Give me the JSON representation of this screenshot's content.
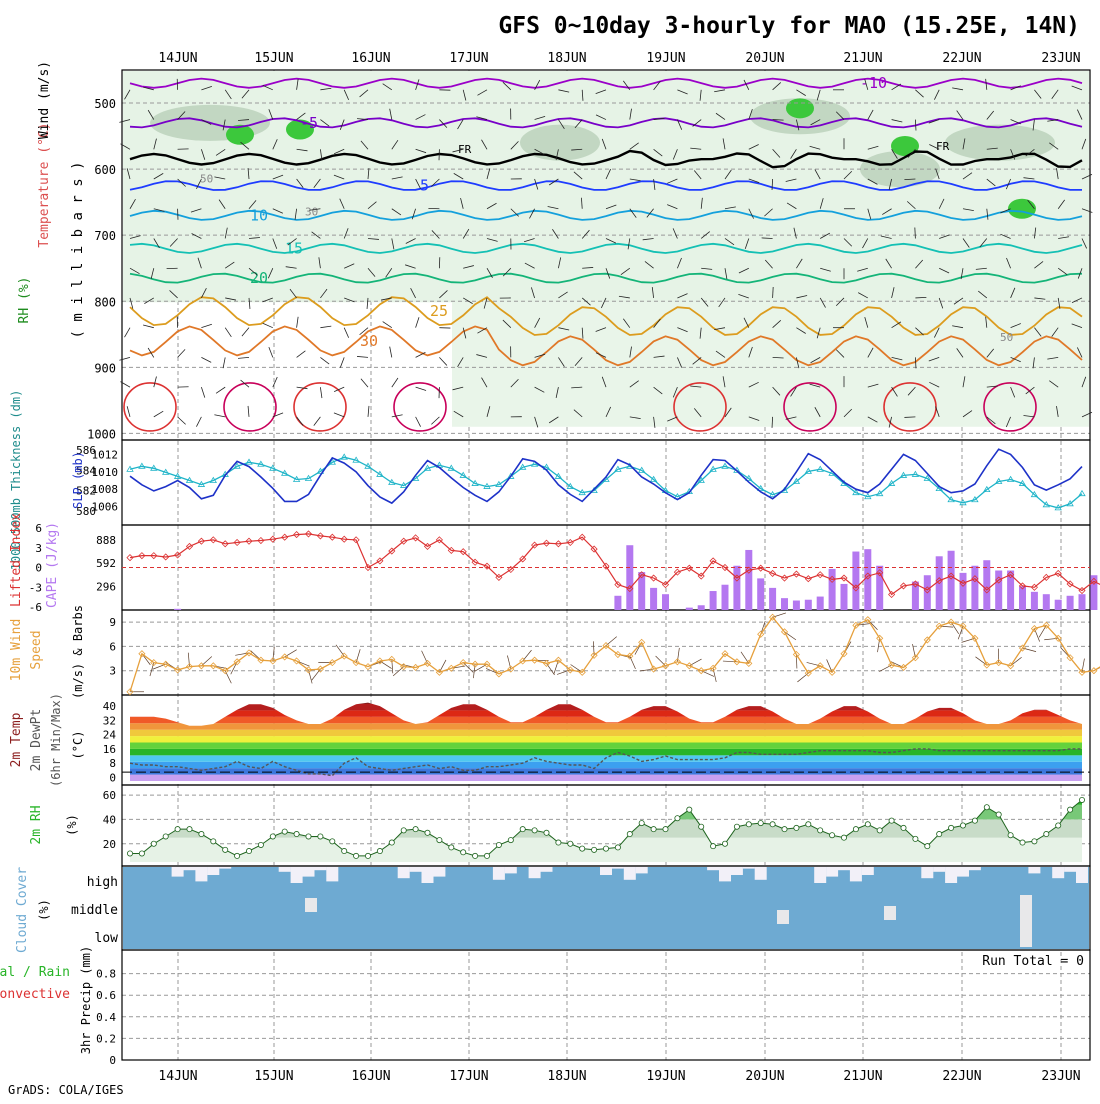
{
  "title": "GFS 0~10day 3-hourly for MAO (15.25E, 14N)",
  "credit": "GrADS: COLA/IGES",
  "dates": [
    "14JUN",
    "15JUN",
    "16JUN",
    "17JUN",
    "18JUN",
    "19JUN",
    "20JUN",
    "21JUN",
    "22JUN",
    "23JUN"
  ],
  "colors": {
    "grid": "#999999",
    "frame": "#000000"
  },
  "chart_data": [
    {
      "panel": "upper-air",
      "type": "heatmap",
      "title": "",
      "ylabels": [
        "RH (%)",
        "Temperature (°C)",
        "Wind (m/s)",
        "( m i l l i b a r s )"
      ],
      "yticks": [
        500,
        600,
        700,
        800,
        900,
        1000
      ],
      "ylim": [
        1000,
        450
      ],
      "freezing_label": "FR",
      "isotherms": [
        {
          "value": -10,
          "label": "-10",
          "color": "#9a00c8",
          "p": 470
        },
        {
          "value": -5,
          "label": "-5",
          "color": "#7800c8",
          "p": 530
        },
        {
          "value": 5,
          "label": "5",
          "color": "#1e3cff",
          "p": 625
        },
        {
          "value": 10,
          "label": "10",
          "color": "#14a0dc",
          "p": 670
        },
        {
          "value": 15,
          "label": "15",
          "color": "#14c0b4",
          "p": 720
        },
        {
          "value": 20,
          "label": "20",
          "color": "#14b478",
          "p": 765
        },
        {
          "value": 25,
          "label": "25",
          "color": "#dc9c1e",
          "p": 815
        },
        {
          "value": 30,
          "label": "30",
          "color": "#e07828",
          "p": 860
        }
      ],
      "rh_labels": [
        "30",
        "50"
      ]
    },
    {
      "panel": "thickness-slp",
      "type": "line",
      "ylabel_left": "1000-500mb Thickness (dm)",
      "ylabel_right": "SLP (mb)",
      "left_ticks": [
        580,
        582,
        584,
        586
      ],
      "right_ticks": [
        1006,
        1008,
        1010,
        1012
      ],
      "series": [
        {
          "name": "SLP (mb)",
          "color": "#1e32c8",
          "values": [
            1009.5,
            1008.5,
            1007.8,
            1008.3,
            1009.0,
            1008.2,
            1006.9,
            1007.3,
            1009.6,
            1011.2,
            1010.6,
            1009.4,
            1008.1,
            1006.6,
            1006.6,
            1007.4,
            1009.6,
            1011.6,
            1011.0,
            1010.0,
            1008.4,
            1007.1,
            1006.4,
            1007.7,
            1009.6,
            1011.3,
            1010.5,
            1009.3,
            1008.2,
            1007.3,
            1006.6,
            1007.7,
            1009.5,
            1011.5,
            1011.2,
            1010.2,
            1008.5,
            1007.4,
            1006.6,
            1008.0,
            1009.4,
            1011.4,
            1010.8,
            1009.4,
            1008.6,
            1007.6,
            1006.8,
            1007.6,
            1009.6,
            1011.4,
            1011.3,
            1010.1,
            1008.8,
            1007.7,
            1006.9,
            1008.0,
            1010.0,
            1012.1,
            1011.4,
            1010.1,
            1008.8,
            1008.0,
            1007.6,
            1008.6,
            1010.3,
            1012.0,
            1011.3,
            1009.8,
            1008.3,
            1007.6,
            1007.8,
            1008.6,
            1010.7,
            1012.6,
            1012.0,
            1010.5,
            1008.5,
            1007.9,
            1008.5,
            1009.2,
            1010.6
          ]
        },
        {
          "name": "Thickness (dm)",
          "color": "#1eb4c8",
          "values": [
            584.1,
            584.4,
            584.2,
            583.8,
            583.4,
            583.0,
            582.6,
            583.0,
            583.6,
            584.4,
            584.8,
            584.6,
            584.2,
            583.7,
            583.1,
            583.2,
            583.9,
            584.8,
            585.3,
            585.0,
            584.4,
            583.6,
            582.8,
            582.5,
            583.2,
            584.2,
            584.5,
            584.2,
            583.5,
            582.7,
            582.4,
            582.6,
            583.4,
            584.3,
            584.6,
            584.3,
            583.4,
            582.4,
            581.8,
            582.0,
            583.1,
            584.1,
            584.4,
            584.0,
            583.1,
            582.0,
            581.4,
            581.9,
            583.0,
            584.1,
            584.4,
            584.0,
            583.2,
            582.2,
            581.6,
            582.0,
            582.9,
            583.9,
            584.1,
            583.7,
            582.7,
            581.8,
            581.4,
            581.7,
            582.7,
            583.5,
            583.6,
            583.2,
            582.2,
            581.1,
            580.8,
            581.1,
            582.1,
            582.9,
            583.1,
            582.7,
            581.6,
            580.6,
            580.3,
            580.7,
            581.7
          ]
        }
      ]
    },
    {
      "panel": "cape-li",
      "type": "bar",
      "ylabel_left": "Lifted Index",
      "ylabel_right": "CAPE (J/kg)",
      "li_ticks": [
        "6",
        "3",
        "0",
        "-3",
        "-6"
      ],
      "cape_ticks": [
        "296",
        "592",
        "888"
      ],
      "series": [
        {
          "name": "CAPE (J/kg)",
          "color": "#b478f0",
          "values": [
            0,
            0,
            0,
            0,
            15,
            0,
            0,
            0,
            0,
            0,
            0,
            0,
            0,
            0,
            0,
            0,
            0,
            0,
            0,
            0,
            0,
            0,
            0,
            0,
            0,
            0,
            0,
            0,
            0,
            0,
            0,
            0,
            0,
            0,
            0,
            0,
            0,
            0,
            0,
            0,
            0,
            180,
            820,
            480,
            280,
            200,
            0,
            30,
            60,
            240,
            320,
            560,
            760,
            400,
            280,
            150,
            120,
            130,
            170,
            520,
            330,
            740,
            770,
            560,
            0,
            0,
            360,
            440,
            680,
            750,
            470,
            560,
            630,
            500,
            500,
            300,
            230,
            200,
            130,
            180,
            200,
            440,
            840,
            590,
            360
          ]
        },
        {
          "name": "Lifted Index",
          "color": "#dc3232",
          "values": [
            1.5,
            1.8,
            1.8,
            1.6,
            1.9,
            3.2,
            4.0,
            4.2,
            3.6,
            3.8,
            4.0,
            4.1,
            4.3,
            4.6,
            5.0,
            5.1,
            4.8,
            4.6,
            4.3,
            4.2,
            0.0,
            1.0,
            2.5,
            4.0,
            4.5,
            3.2,
            4.2,
            2.6,
            2.4,
            0.8,
            0.2,
            -1.5,
            -0.3,
            1.3,
            3.4,
            3.7,
            3.6,
            3.8,
            4.6,
            2.8,
            0.2,
            -2.6,
            -3.2,
            -1.1,
            -1.6,
            -2.6,
            -0.7,
            -0.1,
            -1.3,
            1.0,
            0.0,
            -1.6,
            -0.4,
            -0.1,
            -0.9,
            -1.6,
            -1.0,
            -1.7,
            -1.1,
            -1.8,
            -1.6,
            -3.1,
            -1.3,
            -0.8,
            -4.1,
            -2.8,
            -2.5,
            -3.4,
            -2.0,
            -1.3,
            -2.4,
            -1.7,
            -3.4,
            -1.9,
            -1.1,
            -2.8,
            -3.0,
            -1.5,
            -0.9,
            -2.5,
            -3.5,
            -2.1,
            -3.0,
            -3.2,
            -2.8,
            -3.1,
            -2.9,
            -2.6
          ]
        }
      ]
    },
    {
      "panel": "wind10m",
      "type": "line",
      "ylabel": "10m Wind Speed (m/s) & Barbs",
      "yticks": [
        3,
        6,
        9
      ],
      "ylim": [
        0,
        10
      ],
      "series": [
        {
          "name": "10m Wind Speed",
          "color": "#e6a03c",
          "values": [
            0.4,
            5.1,
            4.0,
            3.8,
            3.1,
            3.5,
            3.6,
            3.6,
            3.0,
            4.1,
            5.2,
            4.3,
            4.2,
            4.7,
            4.2,
            3.1,
            3.2,
            4.0,
            4.8,
            4.0,
            3.5,
            4.2,
            4.4,
            3.5,
            3.4,
            3.9,
            2.8,
            3.3,
            4.0,
            3.8,
            3.8,
            2.6,
            3.2,
            4.2,
            4.3,
            3.9,
            4.3,
            3.1,
            2.8,
            4.9,
            6.1,
            5.0,
            4.8,
            6.5,
            3.2,
            3.6,
            4.1,
            3.6,
            3.0,
            3.3,
            5.1,
            4.1,
            3.9,
            7.5,
            9.6,
            7.8,
            5.0,
            2.7,
            3.6,
            2.8,
            5.1,
            8.6,
            9.3,
            7.0,
            3.7,
            3.4,
            4.6,
            6.8,
            8.5,
            9.0,
            8.5,
            7.0,
            3.7,
            4.0,
            3.6,
            5.8,
            8.2,
            8.6,
            7.0,
            4.6,
            2.8,
            3.0,
            3.9,
            5.8,
            7.0,
            6.5,
            5.5,
            3.3,
            3.4,
            5.0
          ]
        }
      ]
    },
    {
      "panel": "temp2m",
      "type": "area",
      "ylabel": "2m Temp 2m DewPt (6hr Min/Max) (°C)",
      "yticks": [
        0,
        8,
        16,
        24,
        32,
        40
      ],
      "ylim": [
        -2,
        44
      ],
      "series": [
        {
          "name": "2m Temp",
          "color": "#8c1e1e",
          "values": [
            34,
            34,
            34,
            33,
            31,
            29,
            29,
            30,
            34,
            38,
            41,
            41,
            39,
            35,
            32,
            30,
            30,
            33,
            38,
            41,
            42,
            40,
            36,
            32,
            30,
            31,
            35,
            39,
            41,
            41,
            38,
            34,
            31,
            31,
            34,
            38,
            41,
            41,
            38,
            34,
            31,
            31,
            34,
            38,
            40,
            40,
            37,
            33,
            31,
            31,
            34,
            38,
            40,
            40,
            37,
            33,
            30,
            30,
            33,
            37,
            40,
            40,
            37,
            33,
            30,
            30,
            33,
            37,
            39,
            39,
            36,
            32,
            30,
            30,
            32,
            36,
            38,
            38,
            35,
            32,
            30
          ]
        },
        {
          "name": "2m DewPt",
          "color": "#555555",
          "values": [
            8,
            7,
            7,
            6,
            6,
            5,
            4,
            5,
            6,
            9,
            6,
            5,
            9,
            6,
            4,
            2,
            2,
            1,
            8,
            11,
            6,
            5,
            4,
            5,
            6,
            7,
            5,
            6,
            4,
            4,
            6,
            6,
            7,
            8,
            11,
            9,
            8,
            7,
            7,
            5,
            11,
            14,
            12,
            9,
            10,
            12,
            10,
            10,
            10,
            10,
            11,
            14,
            14,
            13,
            13,
            13,
            13,
            14,
            15,
            15,
            15,
            15,
            15,
            14,
            14,
            15,
            16,
            16,
            15,
            15,
            15,
            15,
            15,
            15,
            15,
            15,
            15,
            15,
            15,
            16,
            16
          ]
        }
      ]
    },
    {
      "panel": "rh2m",
      "type": "area",
      "ylabel": "2m RH (%)",
      "yticks": [
        20,
        40,
        60
      ],
      "ylim": [
        5,
        65
      ],
      "series": [
        {
          "name": "2m RH",
          "color": "#1e8c1e",
          "values": [
            12,
            12,
            20,
            26,
            32,
            32,
            28,
            22,
            15,
            10,
            14,
            19,
            26,
            30,
            28,
            26,
            26,
            22,
            14,
            10,
            10,
            14,
            21,
            31,
            32,
            29,
            23,
            17,
            13,
            10,
            10,
            19,
            23,
            32,
            31,
            29,
            21,
            20,
            16,
            15,
            16,
            17,
            28,
            37,
            32,
            32,
            41,
            48,
            34,
            18,
            20,
            34,
            36,
            37,
            36,
            32,
            33,
            36,
            31,
            27,
            25,
            32,
            36,
            31,
            39,
            33,
            24,
            18,
            28,
            33,
            35,
            39,
            50,
            44,
            27,
            21,
            22,
            28,
            35,
            48,
            56
          ]
        }
      ]
    },
    {
      "panel": "cloud",
      "type": "bar",
      "ylabel": "Cloud Cover (%)",
      "levels": [
        "high",
        "middle",
        "low"
      ],
      "color": "#6eaad2"
    },
    {
      "panel": "precip",
      "type": "bar",
      "ylabel_left": "Total / Rain",
      "ylabel_left2": "Convective",
      "ylabel_right": "3hr Precip (mm)",
      "yticks": [
        "0",
        "0.2",
        "0.4",
        "0.6",
        "0.8"
      ],
      "ylim": [
        0,
        1
      ],
      "run_total": "Run Total = 0",
      "series": []
    }
  ]
}
